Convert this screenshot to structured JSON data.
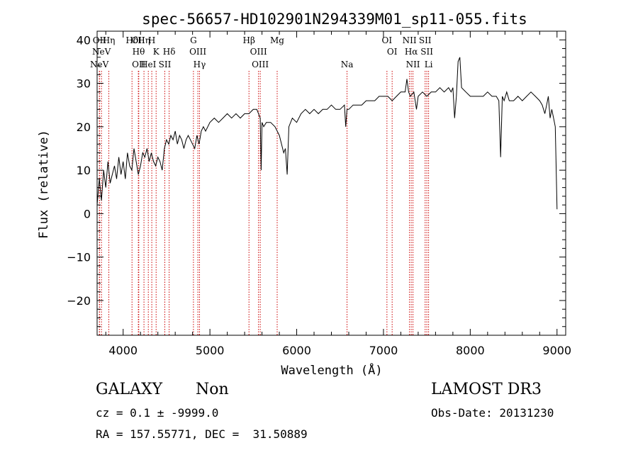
{
  "chart_data": {
    "type": "line",
    "title": "spec-56657-HD102901N294339M01_sp11-055.fits",
    "xlabel": "Wavelength (Å)",
    "ylabel": "Flux (relative)",
    "xlim": [
      3700,
      9100
    ],
    "ylim": [
      -28,
      42
    ],
    "xticks": [
      4000,
      5000,
      6000,
      7000,
      8000,
      9000
    ],
    "yticks": [
      -20,
      -10,
      0,
      10,
      20,
      30,
      40
    ],
    "line_color": "#000000",
    "marker_color": "#cc0000",
    "series": [
      {
        "x": [
          3700,
          3725,
          3750,
          3775,
          3800,
          3825,
          3850,
          3875,
          3900,
          3925,
          3950,
          3975,
          4000,
          4025,
          4050,
          4075,
          4100,
          4125,
          4150,
          4175,
          4200,
          4225,
          4250,
          4275,
          4300,
          4325,
          4350,
          4375,
          4400,
          4425,
          4450,
          4475,
          4500,
          4525,
          4550,
          4575,
          4600,
          4625,
          4650,
          4675,
          4700,
          4725,
          4750,
          4775,
          4800,
          4825,
          4850,
          4875,
          4900,
          4925,
          4950,
          4975,
          5000,
          5050,
          5100,
          5150,
          5200,
          5250,
          5300,
          5350,
          5400,
          5450,
          5500,
          5540,
          5560,
          5580,
          5590,
          5600,
          5620,
          5650,
          5700,
          5750,
          5800,
          5850,
          5870,
          5890,
          5910,
          5950,
          6000,
          6050,
          6100,
          6150,
          6200,
          6250,
          6300,
          6350,
          6400,
          6450,
          6500,
          6550,
          6565,
          6580,
          6600,
          6650,
          6700,
          6750,
          6800,
          6850,
          6900,
          6950,
          7000,
          7050,
          7100,
          7150,
          7200,
          7250,
          7270,
          7290,
          7310,
          7350,
          7380,
          7400,
          7450,
          7500,
          7550,
          7600,
          7650,
          7700,
          7750,
          7780,
          7800,
          7820,
          7840,
          7860,
          7880,
          7900,
          7950,
          8000,
          8050,
          8100,
          8150,
          8200,
          8250,
          8300,
          8330,
          8350,
          8370,
          8390,
          8420,
          8450,
          8500,
          8550,
          8600,
          8650,
          8700,
          8750,
          8800,
          8830,
          8860,
          8880,
          8900,
          8920,
          8940,
          8960,
          8980,
          9000
        ],
        "y": [
          2,
          8,
          3,
          10,
          6,
          12,
          7,
          9,
          11,
          8,
          13,
          9,
          12,
          8,
          14,
          11,
          10,
          15,
          12,
          9,
          11,
          14,
          13,
          15,
          12,
          14,
          12,
          11,
          13,
          12,
          10,
          15,
          17,
          16,
          18,
          17,
          19,
          16,
          18,
          17,
          15,
          17,
          18,
          17,
          16,
          15,
          18,
          16,
          19,
          20,
          19,
          20,
          21,
          22,
          21,
          22,
          23,
          22,
          23,
          22,
          23,
          23,
          24,
          24,
          23,
          22,
          10,
          21,
          20,
          21,
          21,
          20,
          18,
          14,
          15,
          9,
          20,
          22,
          21,
          23,
          24,
          23,
          24,
          23,
          24,
          24,
          25,
          24,
          24,
          25,
          20,
          24,
          24,
          25,
          25,
          25,
          26,
          26,
          26,
          27,
          27,
          27,
          26,
          27,
          28,
          28,
          31,
          28,
          27,
          28,
          24,
          27,
          28,
          27,
          28,
          28,
          29,
          28,
          29,
          28,
          29,
          22,
          27,
          35,
          36,
          29,
          28,
          27,
          27,
          27,
          27,
          28,
          27,
          27,
          26,
          13,
          27,
          26,
          28,
          26,
          26,
          27,
          26,
          27,
          28,
          27,
          26,
          25,
          23,
          25,
          27,
          22,
          24,
          22,
          20,
          1
        ]
      }
    ],
    "lines": [
      {
        "x": 3726,
        "label": "NeV",
        "row": 2
      },
      {
        "x": 3728,
        "label": "OII",
        "row": 0
      },
      {
        "x": 3750,
        "label": "NeV",
        "row": 1
      },
      {
        "x": 3835,
        "label": "Hη",
        "row": 0
      },
      {
        "x": 4102,
        "label": "Hδ",
        "row": 0
      },
      {
        "x": 4175,
        "label": "OII",
        "row": 0
      },
      {
        "x": 4178,
        "label": "Hθ",
        "row": 1
      },
      {
        "x": 4180,
        "label": "OII",
        "row": 2
      },
      {
        "x": 4240,
        "label": "Hη",
        "row": 0
      },
      {
        "x": 4290,
        "label": "HeI",
        "row": 2
      },
      {
        "x": 4330,
        "label": "H",
        "row": 0
      },
      {
        "x": 4380,
        "label": "K",
        "row": 1
      },
      {
        "x": 4480,
        "label": "SII",
        "row": 2
      },
      {
        "x": 4530,
        "label": "Hδ",
        "row": 1
      },
      {
        "x": 4810,
        "label": "G",
        "row": 0
      },
      {
        "x": 4861,
        "label": "OIII",
        "row": 1
      },
      {
        "x": 4880,
        "label": "Hγ",
        "row": 2
      },
      {
        "x": 5450,
        "label": "Hβ",
        "row": 0
      },
      {
        "x": 5560,
        "label": "OIII",
        "row": 1
      },
      {
        "x": 5580,
        "label": "OIII",
        "row": 2
      },
      {
        "x": 5775,
        "label": "Mg",
        "row": 0
      },
      {
        "x": 6580,
        "label": "Na",
        "row": 2
      },
      {
        "x": 7040,
        "label": "OI",
        "row": 0
      },
      {
        "x": 7100,
        "label": "OI",
        "row": 1
      },
      {
        "x": 7300,
        "label": "NII",
        "row": 0
      },
      {
        "x": 7320,
        "label": "Hα",
        "row": 1
      },
      {
        "x": 7340,
        "label": "NII",
        "row": 2
      },
      {
        "x": 7480,
        "label": "SII",
        "row": 0
      },
      {
        "x": 7500,
        "label": "SII",
        "row": 1
      },
      {
        "x": 7520,
        "label": "Li",
        "row": 2
      }
    ]
  },
  "info": {
    "classification": "GALAXY",
    "subclass": "Non",
    "survey": "LAMOST DR3",
    "cz": "cz = 0.1 ± -9999.0",
    "obs_date": "Obs-Date: 20131230",
    "coords": "RA = 157.55771, DEC =  31.50889"
  }
}
